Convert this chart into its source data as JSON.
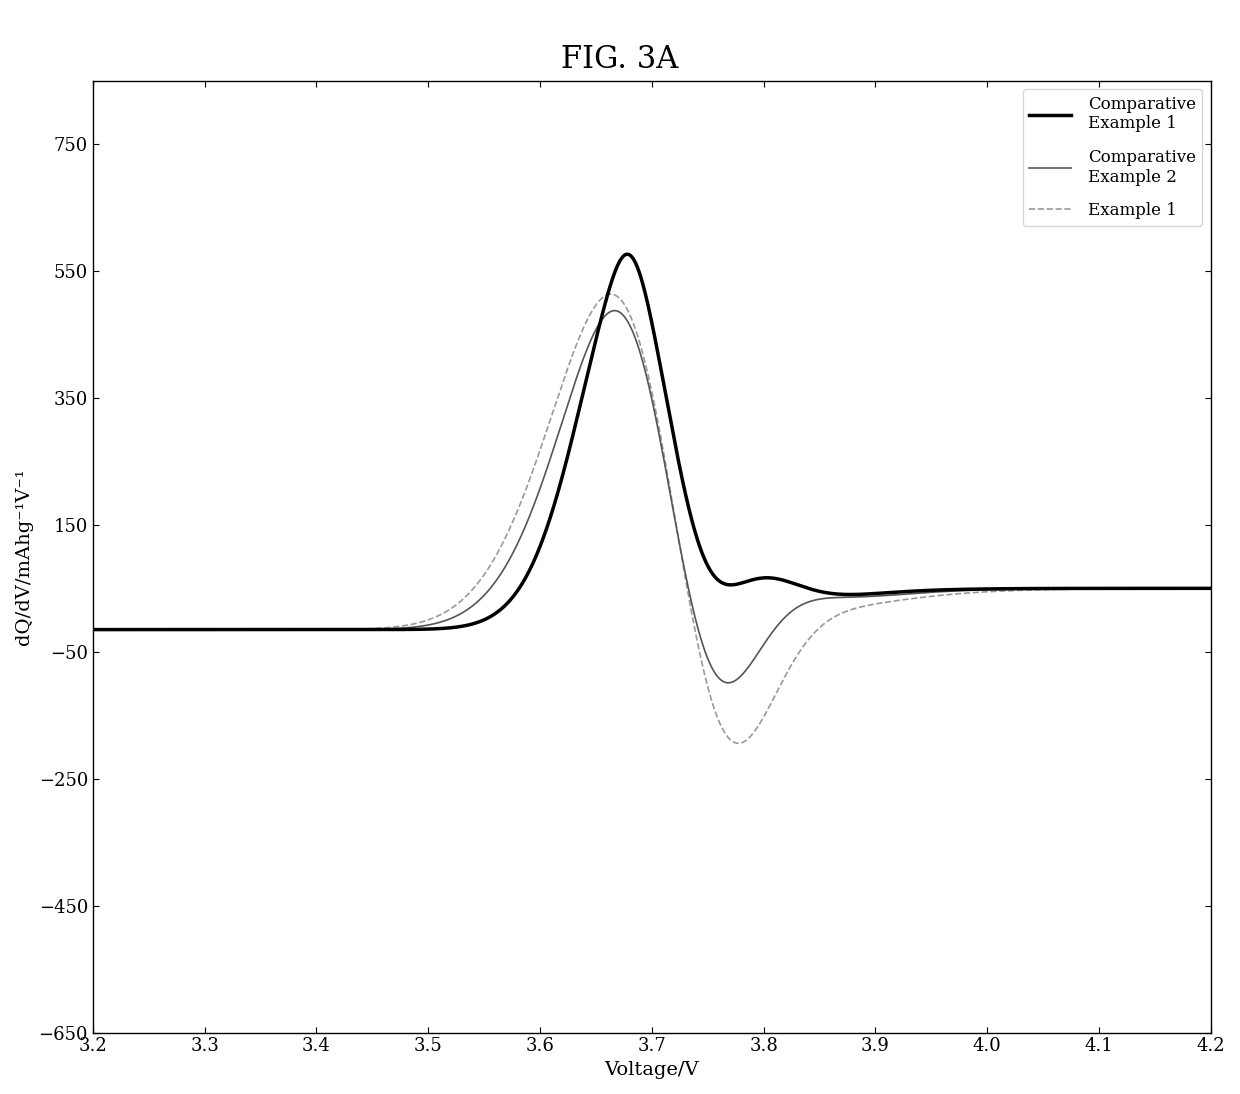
{
  "title": "FIG. 3A",
  "xlabel": "Voltage/V",
  "ylabel": "dQ/dV/mAhg⁻¹V⁻¹",
  "xlim": [
    3.2,
    4.2
  ],
  "ylim": [
    -650,
    850
  ],
  "yticks": [
    -650,
    -450,
    -250,
    -50,
    150,
    350,
    550,
    750
  ],
  "xticks": [
    3.2,
    3.3,
    3.4,
    3.5,
    3.6,
    3.7,
    3.8,
    3.9,
    4.0,
    4.1,
    4.2
  ],
  "background_color": "#ffffff",
  "legend": [
    {
      "label": "Comparative\nExample 1",
      "color": "#000000",
      "lw": 2.5,
      "ls": "-"
    },
    {
      "label": "Comparative\nExample 2",
      "color": "#555555",
      "lw": 1.2,
      "ls": "-"
    },
    {
      "label": "Example 1",
      "color": "#999999",
      "lw": 1.2,
      "ls": "--"
    }
  ],
  "title_fontsize": 22,
  "axis_label_fontsize": 14,
  "tick_fontsize": 13
}
